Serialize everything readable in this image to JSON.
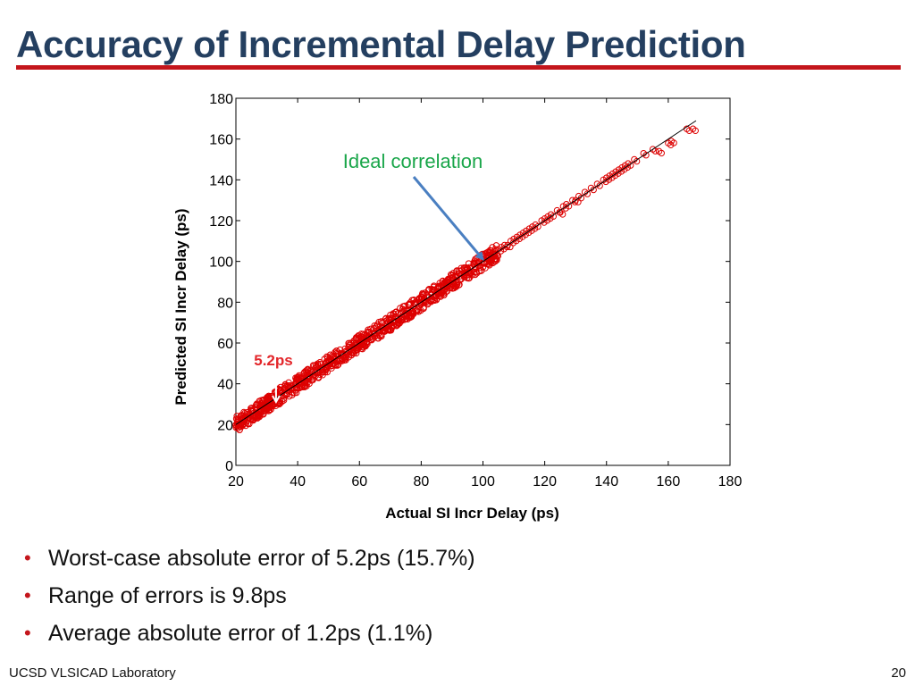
{
  "slide": {
    "title": "Accuracy of Incremental Delay Prediction",
    "footer_left": "UCSD VLSICAD Laboratory",
    "page_number": "20",
    "accent_color": "#c4161c",
    "title_color": "#243f60"
  },
  "bullets": [
    "Worst-case absolute error of 5.2ps (15.7%)",
    "Range of errors is 9.8ps",
    "Average absolute error of 1.2ps (1.1%)"
  ],
  "chart_data": {
    "type": "scatter",
    "xlabel": "Actual SI Incr Delay (ps)",
    "ylabel": "Predicted SI Incr Delay (ps)",
    "xlim": [
      20,
      180
    ],
    "ylim": [
      0,
      180
    ],
    "x_ticks": [
      20,
      40,
      60,
      80,
      100,
      120,
      140,
      160,
      180
    ],
    "y_ticks": [
      0,
      20,
      40,
      60,
      80,
      100,
      120,
      140,
      160,
      180
    ],
    "grid": false,
    "marker": "open-circle",
    "marker_color": "#dd0000",
    "dense_band": {
      "x_range": [
        20,
        105
      ],
      "y_spread": 4
    },
    "ideal_line": {
      "x": [
        20,
        169
      ],
      "y": [
        20,
        169
      ]
    },
    "sparse_points": [
      [
        103,
        104
      ],
      [
        105,
        106
      ],
      [
        106,
        107
      ],
      [
        107,
        108
      ],
      [
        108,
        108
      ],
      [
        109,
        110
      ],
      [
        110,
        111
      ],
      [
        111,
        112
      ],
      [
        112,
        113
      ],
      [
        113,
        114
      ],
      [
        114,
        115
      ],
      [
        115,
        116
      ],
      [
        116,
        117
      ],
      [
        117,
        118
      ],
      [
        119,
        120
      ],
      [
        120,
        121
      ],
      [
        121,
        122
      ],
      [
        122,
        123
      ],
      [
        124,
        125
      ],
      [
        125,
        124
      ],
      [
        126,
        127
      ],
      [
        127,
        128
      ],
      [
        129,
        130
      ],
      [
        130,
        130
      ],
      [
        131,
        132
      ],
      [
        133,
        134
      ],
      [
        135,
        136
      ],
      [
        137,
        138
      ],
      [
        139,
        140
      ],
      [
        140,
        141
      ],
      [
        141,
        142
      ],
      [
        142,
        143
      ],
      [
        143,
        144
      ],
      [
        144,
        145
      ],
      [
        145,
        146
      ],
      [
        146,
        147
      ],
      [
        147,
        148
      ],
      [
        149,
        150
      ],
      [
        152,
        153
      ],
      [
        155,
        155
      ],
      [
        157,
        154
      ],
      [
        160,
        158
      ],
      [
        161,
        159
      ],
      [
        166,
        165
      ],
      [
        168,
        165
      ]
    ],
    "annotations": [
      {
        "text": "Ideal correlation",
        "color": "#1aa64a",
        "arrow_to": [
          100,
          101
        ]
      },
      {
        "text": "5.2ps",
        "color": "#e3262a",
        "arrow_to": [
          33,
          31
        ]
      }
    ]
  }
}
